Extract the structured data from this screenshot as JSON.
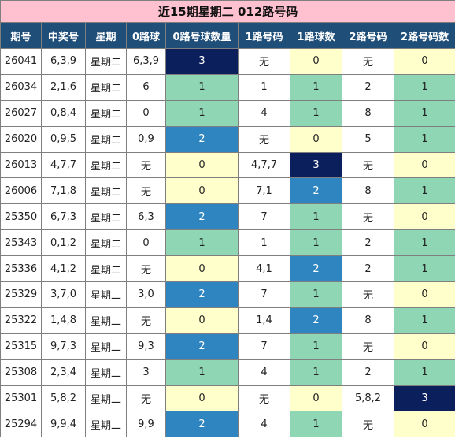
{
  "title": "近15期星期二 012路号码",
  "headers": [
    "期号",
    "中奖号",
    "星期",
    "0路球",
    "0路号球数量",
    "1路号码",
    "1路球数",
    "2路号码",
    "2路号码数"
  ],
  "rows": [
    {
      "cells": [
        "26041",
        "6,3,9",
        "星期二",
        "6,3,9",
        "3",
        "无",
        "0",
        "无",
        "0"
      ],
      "colors": [
        "w",
        "w",
        "w",
        "w",
        "n",
        "w",
        "y",
        "w",
        "y"
      ]
    },
    {
      "cells": [
        "26034",
        "2,1,6",
        "星期二",
        "6",
        "1",
        "1",
        "1",
        "2",
        "1"
      ],
      "colors": [
        "w",
        "w",
        "w",
        "w",
        "g",
        "w",
        "g",
        "w",
        "g"
      ]
    },
    {
      "cells": [
        "26027",
        "0,8,4",
        "星期二",
        "0",
        "1",
        "4",
        "1",
        "8",
        "1"
      ],
      "colors": [
        "w",
        "w",
        "w",
        "w",
        "g",
        "w",
        "g",
        "w",
        "g"
      ]
    },
    {
      "cells": [
        "26020",
        "0,9,5",
        "星期二",
        "0,9",
        "2",
        "无",
        "0",
        "5",
        "1"
      ],
      "colors": [
        "w",
        "w",
        "w",
        "w",
        "b",
        "w",
        "y",
        "w",
        "g"
      ]
    },
    {
      "cells": [
        "26013",
        "4,7,7",
        "星期二",
        "无",
        "0",
        "4,7,7",
        "3",
        "无",
        "0"
      ],
      "colors": [
        "w",
        "w",
        "w",
        "w",
        "y",
        "w",
        "n",
        "w",
        "y"
      ]
    },
    {
      "cells": [
        "26006",
        "7,1,8",
        "星期二",
        "无",
        "0",
        "7,1",
        "2",
        "8",
        "1"
      ],
      "colors": [
        "w",
        "w",
        "w",
        "w",
        "y",
        "w",
        "b",
        "w",
        "g"
      ]
    },
    {
      "cells": [
        "25350",
        "6,7,3",
        "星期二",
        "6,3",
        "2",
        "7",
        "1",
        "无",
        "0"
      ],
      "colors": [
        "w",
        "w",
        "w",
        "w",
        "b",
        "w",
        "g",
        "w",
        "y"
      ]
    },
    {
      "cells": [
        "25343",
        "0,1,2",
        "星期二",
        "0",
        "1",
        "1",
        "1",
        "2",
        "1"
      ],
      "colors": [
        "w",
        "w",
        "w",
        "w",
        "g",
        "w",
        "g",
        "w",
        "g"
      ]
    },
    {
      "cells": [
        "25336",
        "4,1,2",
        "星期二",
        "无",
        "0",
        "4,1",
        "2",
        "2",
        "1"
      ],
      "colors": [
        "w",
        "w",
        "w",
        "w",
        "y",
        "w",
        "b",
        "w",
        "g"
      ]
    },
    {
      "cells": [
        "25329",
        "3,7,0",
        "星期二",
        "3,0",
        "2",
        "7",
        "1",
        "无",
        "0"
      ],
      "colors": [
        "w",
        "w",
        "w",
        "w",
        "b",
        "w",
        "g",
        "w",
        "y"
      ]
    },
    {
      "cells": [
        "25322",
        "1,4,8",
        "星期二",
        "无",
        "0",
        "1,4",
        "2",
        "8",
        "1"
      ],
      "colors": [
        "w",
        "w",
        "w",
        "w",
        "y",
        "w",
        "b",
        "w",
        "g"
      ]
    },
    {
      "cells": [
        "25315",
        "9,7,3",
        "星期二",
        "9,3",
        "2",
        "7",
        "1",
        "无",
        "0"
      ],
      "colors": [
        "w",
        "w",
        "w",
        "w",
        "b",
        "w",
        "g",
        "w",
        "y"
      ]
    },
    {
      "cells": [
        "25308",
        "2,3,4",
        "星期二",
        "3",
        "1",
        "4",
        "1",
        "2",
        "1"
      ],
      "colors": [
        "w",
        "w",
        "w",
        "w",
        "g",
        "w",
        "g",
        "w",
        "g"
      ]
    },
    {
      "cells": [
        "25301",
        "5,8,2",
        "星期二",
        "无",
        "0",
        "无",
        "0",
        "5,8,2",
        "3"
      ],
      "colors": [
        "w",
        "w",
        "w",
        "w",
        "y",
        "w",
        "y",
        "w",
        "n"
      ]
    },
    {
      "cells": [
        "25294",
        "9,9,4",
        "星期二",
        "9,9",
        "2",
        "4",
        "1",
        "无",
        "0"
      ],
      "colors": [
        "w",
        "w",
        "w",
        "w",
        "b",
        "w",
        "g",
        "w",
        "y"
      ]
    }
  ]
}
